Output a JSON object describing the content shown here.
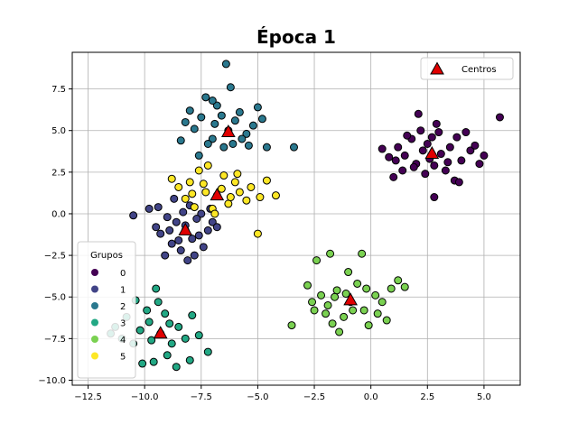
{
  "chart_data": {
    "type": "scatter",
    "title": "Época 1",
    "xlabel": "",
    "ylabel": "",
    "xlim": [
      -13.2,
      6.6
    ],
    "ylim": [
      -10.3,
      9.7
    ],
    "xticks": [
      -12.5,
      -10.0,
      -7.5,
      -5.0,
      -2.5,
      0.0,
      2.5,
      5.0
    ],
    "xtick_labels": [
      "−12.5",
      "−10.0",
      "−7.5",
      "−5.0",
      "−2.5",
      "0.0",
      "2.5",
      "5.0"
    ],
    "yticks": [
      -10.0,
      -7.5,
      -5.0,
      -2.5,
      0.0,
      2.5,
      5.0,
      7.5
    ],
    "ytick_labels": [
      "−10.0",
      "−7.5",
      "−5.0",
      "−2.5",
      "0.0",
      "2.5",
      "5.0",
      "7.5"
    ],
    "grid": true,
    "legend_groups_title": "Grupos",
    "legend_groups_placement": "lower-left",
    "legend_centers_label": "Centros",
    "legend_centers_placement": "top-right",
    "series": [
      {
        "name": "0",
        "color": "#440154",
        "points": [
          [
            2.5,
            4.2
          ],
          [
            3.1,
            3.6
          ],
          [
            2.0,
            3.0
          ],
          [
            1.8,
            4.5
          ],
          [
            3.5,
            4.0
          ],
          [
            2.8,
            2.9
          ],
          [
            4.0,
            3.2
          ],
          [
            2.2,
            5.0
          ],
          [
            1.5,
            3.5
          ],
          [
            3.8,
            4.6
          ],
          [
            2.6,
            3.3
          ],
          [
            3.0,
            4.9
          ],
          [
            1.2,
            4.0
          ],
          [
            4.4,
            3.8
          ],
          [
            2.4,
            2.4
          ],
          [
            3.3,
            2.6
          ],
          [
            1.9,
            2.8
          ],
          [
            2.9,
            5.4
          ],
          [
            1.1,
            3.2
          ],
          [
            0.5,
            3.9
          ],
          [
            0.8,
            3.4
          ],
          [
            4.8,
            3.0
          ],
          [
            5.0,
            3.5
          ],
          [
            5.7,
            5.8
          ],
          [
            2.8,
            1.0
          ],
          [
            2.1,
            6.0
          ],
          [
            1.0,
            2.2
          ],
          [
            3.7,
            2.0
          ],
          [
            3.9,
            1.9
          ],
          [
            4.2,
            4.9
          ],
          [
            1.6,
            4.7
          ],
          [
            2.3,
            3.8
          ],
          [
            3.4,
            3.1
          ],
          [
            1.4,
            2.6
          ],
          [
            4.6,
            4.1
          ],
          [
            2.7,
            4.6
          ]
        ]
      },
      {
        "name": "1",
        "color": "#414487",
        "points": [
          [
            -8.2,
            -1.0
          ],
          [
            -8.6,
            -0.5
          ],
          [
            -7.9,
            -1.5
          ],
          [
            -9.0,
            -0.2
          ],
          [
            -7.5,
            0.0
          ],
          [
            -8.8,
            -1.8
          ],
          [
            -8.0,
            0.5
          ],
          [
            -9.3,
            -1.2
          ],
          [
            -7.2,
            -1.0
          ],
          [
            -8.4,
            -2.2
          ],
          [
            -7.7,
            -0.3
          ],
          [
            -9.5,
            -0.8
          ],
          [
            -8.1,
            -2.8
          ],
          [
            -7.0,
            -0.5
          ],
          [
            -9.8,
            0.3
          ],
          [
            -8.7,
            0.9
          ],
          [
            -7.4,
            -2.0
          ],
          [
            -10.5,
            -0.1
          ],
          [
            -8.3,
            0.1
          ],
          [
            -9.1,
            -2.5
          ],
          [
            -7.6,
            -1.3
          ],
          [
            -8.9,
            -1.0
          ],
          [
            -7.1,
            0.3
          ],
          [
            -8.5,
            -1.6
          ],
          [
            -9.4,
            0.4
          ],
          [
            -7.8,
            -2.5
          ],
          [
            -8.2,
            -0.7
          ],
          [
            -6.8,
            -0.8
          ]
        ]
      },
      {
        "name": "2",
        "color": "#2a788e",
        "points": [
          [
            -6.3,
            5.0
          ],
          [
            -7.0,
            4.5
          ],
          [
            -6.0,
            5.6
          ],
          [
            -7.5,
            5.8
          ],
          [
            -5.5,
            4.8
          ],
          [
            -6.8,
            6.5
          ],
          [
            -6.5,
            4.0
          ],
          [
            -7.8,
            5.1
          ],
          [
            -5.8,
            6.1
          ],
          [
            -6.2,
            7.6
          ],
          [
            -7.2,
            4.2
          ],
          [
            -5.2,
            5.3
          ],
          [
            -8.0,
            6.2
          ],
          [
            -6.6,
            5.9
          ],
          [
            -5.0,
            6.4
          ],
          [
            -7.3,
            7.0
          ],
          [
            -6.4,
            9.0
          ],
          [
            -4.6,
            4.0
          ],
          [
            -3.4,
            4.0
          ],
          [
            -8.4,
            4.4
          ],
          [
            -5.7,
            4.5
          ],
          [
            -7.6,
            3.5
          ],
          [
            -6.9,
            5.4
          ],
          [
            -4.8,
            5.7
          ],
          [
            -8.2,
            5.5
          ],
          [
            -6.1,
            4.2
          ],
          [
            -7.0,
            6.8
          ],
          [
            -5.4,
            4.1
          ]
        ]
      },
      {
        "name": "3",
        "color": "#22a884",
        "points": [
          [
            -9.3,
            -7.2
          ],
          [
            -9.8,
            -6.5
          ],
          [
            -8.8,
            -7.8
          ],
          [
            -10.2,
            -7.0
          ],
          [
            -9.0,
            -8.5
          ],
          [
            -10.5,
            -7.8
          ],
          [
            -8.5,
            -6.8
          ],
          [
            -9.6,
            -8.9
          ],
          [
            -10.8,
            -6.2
          ],
          [
            -8.2,
            -7.5
          ],
          [
            -9.9,
            -5.8
          ],
          [
            -11.0,
            -7.5
          ],
          [
            -8.6,
            -9.2
          ],
          [
            -9.4,
            -5.3
          ],
          [
            -7.9,
            -6.1
          ],
          [
            -10.1,
            -9.0
          ],
          [
            -11.3,
            -6.8
          ],
          [
            -7.6,
            -7.3
          ],
          [
            -9.1,
            -6.0
          ],
          [
            -10.4,
            -5.2
          ],
          [
            -8.0,
            -8.8
          ],
          [
            -7.2,
            -8.3
          ],
          [
            -11.5,
            -7.2
          ],
          [
            -9.5,
            -4.5
          ],
          [
            -9.7,
            -7.6
          ],
          [
            -8.9,
            -6.6
          ]
        ]
      },
      {
        "name": "4",
        "color": "#7ad151",
        "points": [
          [
            -0.9,
            -5.3
          ],
          [
            -1.5,
            -4.6
          ],
          [
            -0.3,
            -5.8
          ],
          [
            -1.9,
            -5.5
          ],
          [
            0.2,
            -4.9
          ],
          [
            -1.2,
            -6.2
          ],
          [
            -0.6,
            -4.2
          ],
          [
            -2.2,
            -4.9
          ],
          [
            0.5,
            -5.3
          ],
          [
            -1.7,
            -6.6
          ],
          [
            -0.1,
            -6.7
          ],
          [
            -2.5,
            -5.8
          ],
          [
            0.9,
            -4.5
          ],
          [
            -1.0,
            -3.5
          ],
          [
            -2.8,
            -4.3
          ],
          [
            0.3,
            -6.0
          ],
          [
            -1.4,
            -7.1
          ],
          [
            -0.4,
            -2.4
          ],
          [
            -1.8,
            -2.4
          ],
          [
            -3.5,
            -6.7
          ],
          [
            1.2,
            -4.0
          ],
          [
            -2.4,
            -2.8
          ],
          [
            -0.8,
            -5.8
          ],
          [
            -1.6,
            -5.0
          ],
          [
            0.7,
            -6.4
          ],
          [
            -2.0,
            -6.0
          ],
          [
            -0.2,
            -4.5
          ],
          [
            1.5,
            -4.4
          ],
          [
            -1.1,
            -4.8
          ],
          [
            -2.6,
            -5.3
          ]
        ]
      },
      {
        "name": "5",
        "color": "#fde725",
        "points": [
          [
            -6.8,
            1.1
          ],
          [
            -7.4,
            1.8
          ],
          [
            -6.3,
            0.6
          ],
          [
            -7.9,
            1.2
          ],
          [
            -6.0,
            1.9
          ],
          [
            -7.0,
            0.3
          ],
          [
            -6.5,
            2.3
          ],
          [
            -8.2,
            0.9
          ],
          [
            -5.8,
            1.3
          ],
          [
            -7.6,
            2.6
          ],
          [
            -6.9,
            0.0
          ],
          [
            -8.5,
            1.6
          ],
          [
            -5.5,
            0.8
          ],
          [
            -7.2,
            2.9
          ],
          [
            -6.2,
            1.0
          ],
          [
            -5.3,
            1.6
          ],
          [
            -8.8,
            2.1
          ],
          [
            -4.9,
            1.0
          ],
          [
            -4.6,
            2.0
          ],
          [
            -4.2,
            1.1
          ],
          [
            -5.0,
            -1.2
          ],
          [
            -7.8,
            0.4
          ],
          [
            -6.6,
            1.5
          ],
          [
            -5.9,
            2.4
          ],
          [
            -7.3,
            1.3
          ],
          [
            -8.0,
            1.9
          ]
        ]
      }
    ],
    "centers": {
      "label": "Centros",
      "color": "#e00000",
      "points": [
        [
          2.7,
          3.6
        ],
        [
          -8.2,
          -1.0
        ],
        [
          -6.3,
          4.9
        ],
        [
          -9.3,
          -7.2
        ],
        [
          -0.9,
          -5.2
        ],
        [
          -6.8,
          1.1
        ]
      ]
    }
  }
}
